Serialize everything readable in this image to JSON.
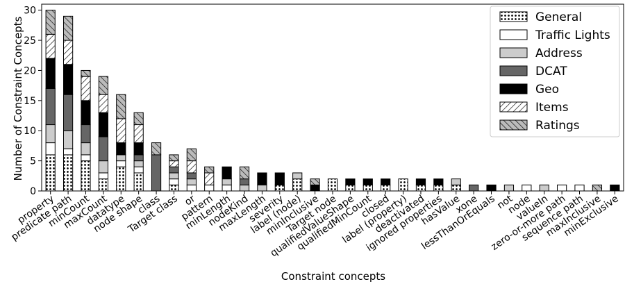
{
  "chart_data": {
    "type": "bar",
    "stacked": true,
    "xlabel": "Constraint concepts",
    "ylabel": "Number of Constraint Concepts",
    "ylim": [
      0,
      31
    ],
    "yticks": [
      0,
      5,
      10,
      15,
      20,
      25,
      30
    ],
    "grid": false,
    "legend_position": "top-right",
    "categories": [
      "property",
      "predicate path",
      "minCount",
      "maxCount",
      "datatype",
      "node shape",
      "class",
      "Target class",
      "or",
      "pattern",
      "minLength",
      "nodeKind",
      "maxLength",
      "severity",
      "label (node)",
      "minInclusive",
      "Target node",
      "qualifiedValueShape",
      "qualifiedMinCount",
      "closed",
      "label (property)",
      "deactivated",
      "ignored properties",
      "hasValue",
      "xone",
      "lessThanOrEquals",
      "not",
      "node",
      "valueIn",
      "zero-or-more path",
      "sequence path",
      "maxInclusive",
      "minExclusive"
    ],
    "series": [
      {
        "name": "General",
        "values": [
          6,
          6,
          5,
          2,
          4,
          3,
          0,
          1,
          0,
          0,
          0,
          0,
          0,
          1,
          2,
          0,
          2,
          1,
          1,
          1,
          2,
          1,
          1,
          1,
          0,
          0,
          0,
          0,
          0,
          0,
          0,
          0,
          0
        ]
      },
      {
        "name": "Traffic Lights",
        "values": [
          2,
          1,
          1,
          1,
          1,
          1,
          0,
          1,
          1,
          1,
          1,
          0,
          0,
          0,
          0,
          0,
          0,
          0,
          0,
          0,
          0,
          0,
          0,
          0,
          0,
          0,
          0,
          1,
          0,
          1,
          1,
          0,
          0
        ]
      },
      {
        "name": "Address",
        "values": [
          3,
          3,
          2,
          2,
          1,
          1,
          0,
          1,
          1,
          0,
          1,
          1,
          1,
          0,
          1,
          0,
          0,
          0,
          0,
          0,
          0,
          0,
          0,
          1,
          0,
          0,
          1,
          0,
          1,
          0,
          0,
          0,
          0
        ]
      },
      {
        "name": "DCAT",
        "values": [
          6,
          6,
          3,
          4,
          0,
          1,
          6,
          1,
          1,
          0,
          0,
          1,
          0,
          0,
          0,
          0,
          0,
          0,
          0,
          0,
          0,
          0,
          0,
          0,
          1,
          0,
          0,
          0,
          0,
          0,
          0,
          0,
          0
        ]
      },
      {
        "name": "Geo",
        "values": [
          5,
          5,
          4,
          4,
          2,
          2,
          0,
          0,
          0,
          0,
          2,
          0,
          2,
          2,
          0,
          1,
          0,
          1,
          1,
          1,
          0,
          1,
          1,
          0,
          0,
          1,
          0,
          0,
          0,
          0,
          0,
          0,
          1
        ]
      },
      {
        "name": "Items",
        "values": [
          4,
          4,
          4,
          3,
          4,
          3,
          0,
          1,
          2,
          2,
          0,
          0,
          0,
          0,
          0,
          0,
          0,
          0,
          0,
          0,
          0,
          0,
          0,
          0,
          0,
          0,
          0,
          0,
          0,
          0,
          0,
          0,
          0
        ]
      },
      {
        "name": "Ratings",
        "values": [
          4,
          4,
          1,
          3,
          4,
          2,
          2,
          1,
          2,
          1,
          0,
          2,
          0,
          0,
          0,
          1,
          0,
          0,
          0,
          0,
          0,
          0,
          0,
          0,
          0,
          0,
          0,
          0,
          0,
          0,
          0,
          1,
          0
        ]
      }
    ],
    "series_styles": [
      {
        "fill": "#ffffff",
        "hatch": "dots"
      },
      {
        "fill": "#ffffff",
        "hatch": "none"
      },
      {
        "fill": "#cccccc",
        "hatch": "none"
      },
      {
        "fill": "#666666",
        "hatch": "none"
      },
      {
        "fill": "#000000",
        "hatch": "none"
      },
      {
        "fill": "#ffffff",
        "hatch": "backslash"
      },
      {
        "fill": "#bbbbbb",
        "hatch": "slash"
      }
    ]
  }
}
